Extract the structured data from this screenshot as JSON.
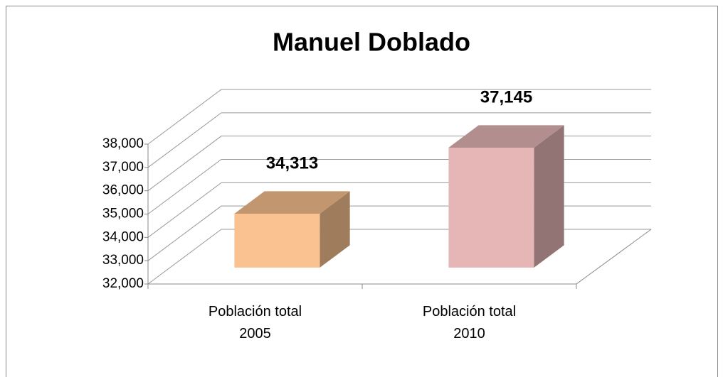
{
  "chart_data": {
    "type": "bar3d",
    "title": "Manuel Doblado",
    "categories": [
      "Población total 2005",
      "Población total 2010"
    ],
    "values": [
      34313,
      37145
    ],
    "value_labels": [
      "34,313",
      "37,145"
    ],
    "colors": [
      "#f9c290",
      "#e6b6b6"
    ],
    "ylim": [
      32000,
      38000
    ],
    "yticks": [
      {
        "value": 32000,
        "label": "32,000"
      },
      {
        "value": 33000,
        "label": "33,000"
      },
      {
        "value": 34000,
        "label": "34,000"
      },
      {
        "value": 35000,
        "label": "35,000"
      },
      {
        "value": 36000,
        "label": "36,000"
      },
      {
        "value": 37000,
        "label": "37,000"
      },
      {
        "value": 38000,
        "label": "38,000"
      }
    ],
    "grid": true
  }
}
